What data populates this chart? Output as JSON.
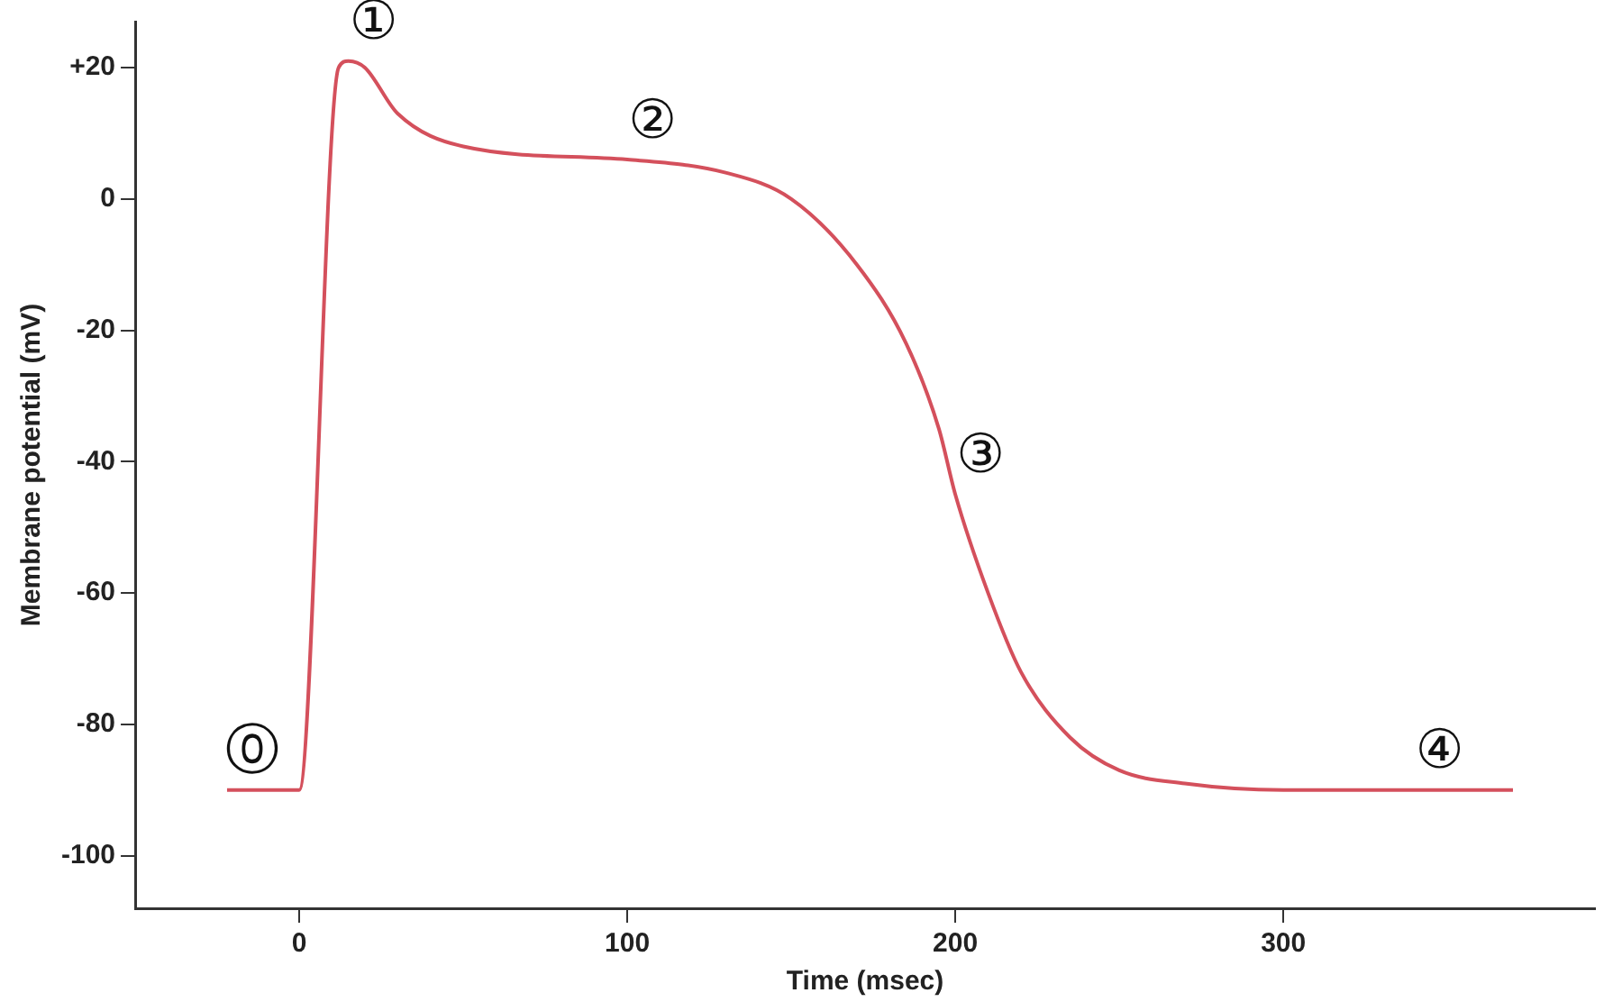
{
  "chart_data": {
    "type": "line",
    "xlabel": "Time (msec)",
    "ylabel": "Membrane potential (mV)",
    "xlim": [
      -50,
      395
    ],
    "ylim": [
      -108,
      27
    ],
    "xticks": [
      0,
      100,
      200,
      300
    ],
    "yticks": [
      {
        "value": 20,
        "label": "+20"
      },
      0,
      -20,
      -40,
      -60,
      -80,
      -100
    ],
    "grid": false,
    "legend": false,
    "marker": "none",
    "line_style": "solid",
    "series": [
      {
        "color": "#d4505c",
        "x": [
          -22,
          0,
          12,
          15,
          20,
          30,
          50,
          100,
          130,
          150,
          170,
          185,
          195,
          200,
          210,
          220,
          235,
          250,
          270,
          300,
          340,
          370
        ],
        "values": [
          -90,
          -90,
          20,
          21,
          20,
          13,
          8,
          6,
          4,
          0,
          -10,
          -22,
          -35,
          -45,
          -60,
          -72,
          -82,
          -87,
          -89,
          -90,
          -90,
          -90
        ]
      }
    ],
    "annotations": [
      {
        "text": "⓪",
        "x": -22,
        "y": -90
      },
      {
        "text": "①",
        "x": 15,
        "y": 21
      },
      {
        "text": "②",
        "x": 100,
        "y": 6
      },
      {
        "text": "③",
        "x": 200,
        "y": -45
      },
      {
        "text": "④",
        "x": 340,
        "y": -90
      }
    ]
  }
}
